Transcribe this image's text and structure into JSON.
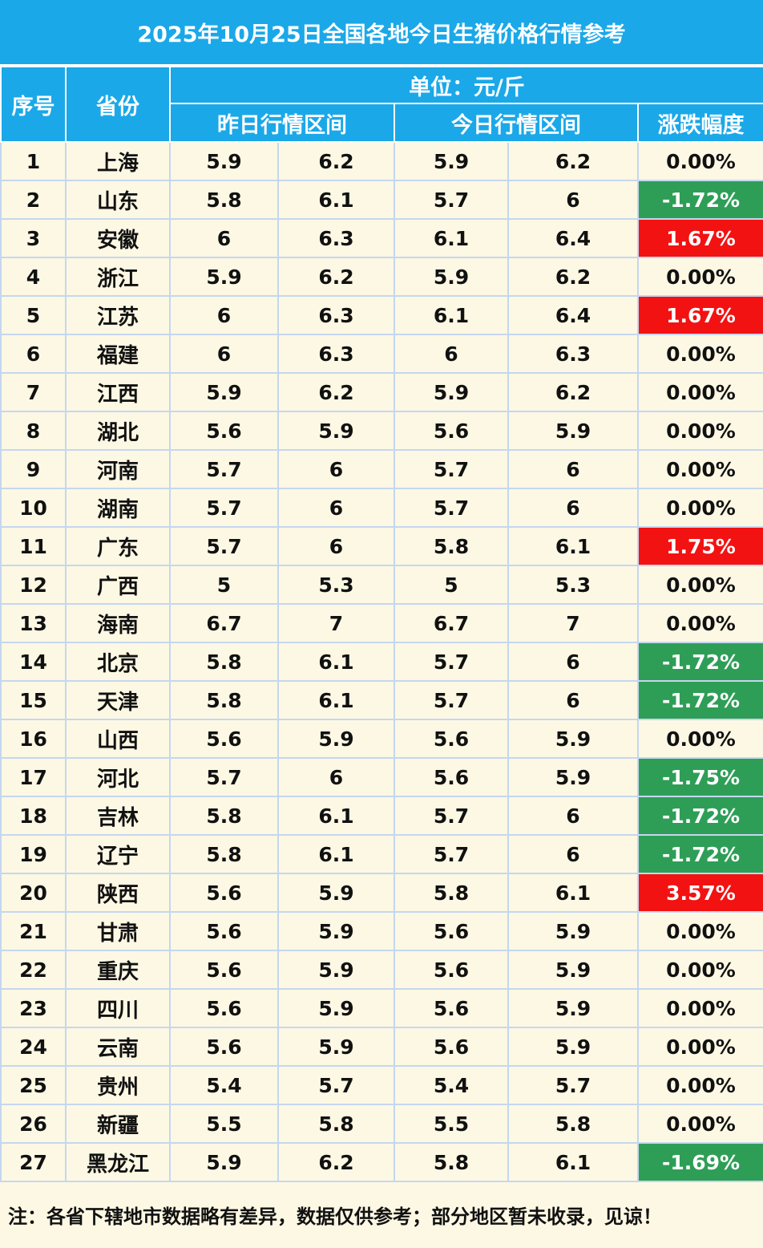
{
  "title": "2025年10月25日全国各地今日生猪价格行情参考",
  "headers": {
    "index": "序号",
    "province": "省份",
    "unit": "单位：元/斤",
    "yesterday": "昨日行情区间",
    "today": "今日行情区间",
    "change": "涨跌幅度"
  },
  "rows": [
    {
      "no": "1",
      "province": "上海",
      "y_low": "5.9",
      "y_high": "6.2",
      "t_low": "5.9",
      "t_high": "6.2",
      "change": "0.00%",
      "trend": "flat"
    },
    {
      "no": "2",
      "province": "山东",
      "y_low": "5.8",
      "y_high": "6.1",
      "t_low": "5.7",
      "t_high": "6",
      "change": "-1.72%",
      "trend": "down"
    },
    {
      "no": "3",
      "province": "安徽",
      "y_low": "6",
      "y_high": "6.3",
      "t_low": "6.1",
      "t_high": "6.4",
      "change": "1.67%",
      "trend": "up"
    },
    {
      "no": "4",
      "province": "浙江",
      "y_low": "5.9",
      "y_high": "6.2",
      "t_low": "5.9",
      "t_high": "6.2",
      "change": "0.00%",
      "trend": "flat"
    },
    {
      "no": "5",
      "province": "江苏",
      "y_low": "6",
      "y_high": "6.3",
      "t_low": "6.1",
      "t_high": "6.4",
      "change": "1.67%",
      "trend": "up"
    },
    {
      "no": "6",
      "province": "福建",
      "y_low": "6",
      "y_high": "6.3",
      "t_low": "6",
      "t_high": "6.3",
      "change": "0.00%",
      "trend": "flat"
    },
    {
      "no": "7",
      "province": "江西",
      "y_low": "5.9",
      "y_high": "6.2",
      "t_low": "5.9",
      "t_high": "6.2",
      "change": "0.00%",
      "trend": "flat"
    },
    {
      "no": "8",
      "province": "湖北",
      "y_low": "5.6",
      "y_high": "5.9",
      "t_low": "5.6",
      "t_high": "5.9",
      "change": "0.00%",
      "trend": "flat"
    },
    {
      "no": "9",
      "province": "河南",
      "y_low": "5.7",
      "y_high": "6",
      "t_low": "5.7",
      "t_high": "6",
      "change": "0.00%",
      "trend": "flat"
    },
    {
      "no": "10",
      "province": "湖南",
      "y_low": "5.7",
      "y_high": "6",
      "t_low": "5.7",
      "t_high": "6",
      "change": "0.00%",
      "trend": "flat"
    },
    {
      "no": "11",
      "province": "广东",
      "y_low": "5.7",
      "y_high": "6",
      "t_low": "5.8",
      "t_high": "6.1",
      "change": "1.75%",
      "trend": "up"
    },
    {
      "no": "12",
      "province": "广西",
      "y_low": "5",
      "y_high": "5.3",
      "t_low": "5",
      "t_high": "5.3",
      "change": "0.00%",
      "trend": "flat"
    },
    {
      "no": "13",
      "province": "海南",
      "y_low": "6.7",
      "y_high": "7",
      "t_low": "6.7",
      "t_high": "7",
      "change": "0.00%",
      "trend": "flat"
    },
    {
      "no": "14",
      "province": "北京",
      "y_low": "5.8",
      "y_high": "6.1",
      "t_low": "5.7",
      "t_high": "6",
      "change": "-1.72%",
      "trend": "down"
    },
    {
      "no": "15",
      "province": "天津",
      "y_low": "5.8",
      "y_high": "6.1",
      "t_low": "5.7",
      "t_high": "6",
      "change": "-1.72%",
      "trend": "down"
    },
    {
      "no": "16",
      "province": "山西",
      "y_low": "5.6",
      "y_high": "5.9",
      "t_low": "5.6",
      "t_high": "5.9",
      "change": "0.00%",
      "trend": "flat"
    },
    {
      "no": "17",
      "province": "河北",
      "y_low": "5.7",
      "y_high": "6",
      "t_low": "5.6",
      "t_high": "5.9",
      "change": "-1.75%",
      "trend": "down"
    },
    {
      "no": "18",
      "province": "吉林",
      "y_low": "5.8",
      "y_high": "6.1",
      "t_low": "5.7",
      "t_high": "6",
      "change": "-1.72%",
      "trend": "down"
    },
    {
      "no": "19",
      "province": "辽宁",
      "y_low": "5.8",
      "y_high": "6.1",
      "t_low": "5.7",
      "t_high": "6",
      "change": "-1.72%",
      "trend": "down"
    },
    {
      "no": "20",
      "province": "陕西",
      "y_low": "5.6",
      "y_high": "5.9",
      "t_low": "5.8",
      "t_high": "6.1",
      "change": "3.57%",
      "trend": "up"
    },
    {
      "no": "21",
      "province": "甘肃",
      "y_low": "5.6",
      "y_high": "5.9",
      "t_low": "5.6",
      "t_high": "5.9",
      "change": "0.00%",
      "trend": "flat"
    },
    {
      "no": "22",
      "province": "重庆",
      "y_low": "5.6",
      "y_high": "5.9",
      "t_low": "5.6",
      "t_high": "5.9",
      "change": "0.00%",
      "trend": "flat"
    },
    {
      "no": "23",
      "province": "四川",
      "y_low": "5.6",
      "y_high": "5.9",
      "t_low": "5.6",
      "t_high": "5.9",
      "change": "0.00%",
      "trend": "flat"
    },
    {
      "no": "24",
      "province": "云南",
      "y_low": "5.6",
      "y_high": "5.9",
      "t_low": "5.6",
      "t_high": "5.9",
      "change": "0.00%",
      "trend": "flat"
    },
    {
      "no": "25",
      "province": "贵州",
      "y_low": "5.4",
      "y_high": "5.7",
      "t_low": "5.4",
      "t_high": "5.7",
      "change": "0.00%",
      "trend": "flat"
    },
    {
      "no": "26",
      "province": "新疆",
      "y_low": "5.5",
      "y_high": "5.8",
      "t_low": "5.5",
      "t_high": "5.8",
      "change": "0.00%",
      "trend": "flat"
    },
    {
      "no": "27",
      "province": "黑龙江",
      "y_low": "5.9",
      "y_high": "6.2",
      "t_low": "5.8",
      "t_high": "6.1",
      "change": "-1.69%",
      "trend": "down"
    }
  ],
  "note": "注：各省下辖地市数据略有差异，数据仅供参考；部分地区暂未收录，见谅！",
  "colors": {
    "header_blue": "#1ba8e8",
    "up_red": "#f21212",
    "down_green": "#2e9e57",
    "background": "#fdf8e4",
    "grid": "#c4d7ef"
  }
}
